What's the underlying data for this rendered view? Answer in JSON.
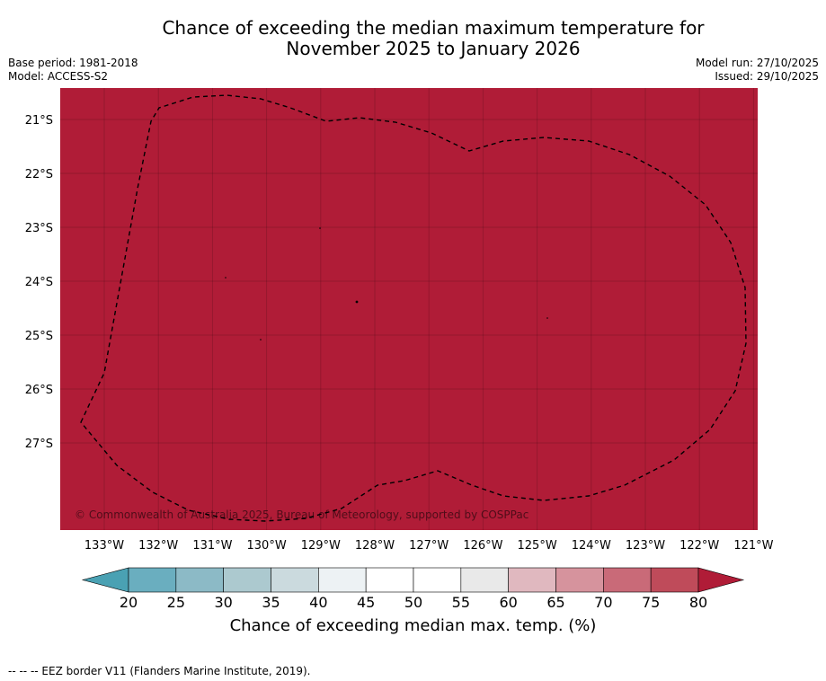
{
  "title": {
    "line1": "Chance of exceeding the median maximum temperature for",
    "line2": "November 2025 to January 2026"
  },
  "meta_left": {
    "base_period": "Base period: 1981-2018",
    "model": "Model: ACCESS-S2"
  },
  "meta_right": {
    "model_run": "Model run: 27/10/2025",
    "issued": "Issued: 29/10/2025"
  },
  "map": {
    "fill_color": "#b01c37",
    "lat_labels": [
      "21°S",
      "22°S",
      "23°S",
      "24°S",
      "25°S",
      "26°S",
      "27°S"
    ],
    "lon_labels": [
      "133°W",
      "132°W",
      "131°W",
      "130°W",
      "129°W",
      "128°W",
      "127°W",
      "126°W",
      "125°W",
      "124°W",
      "123°W",
      "122°W",
      "121°W"
    ],
    "copyright": "© Commonwealth of Australia 2025, Bureau of Meteorology, supported by COSPPac"
  },
  "colorbar": {
    "ticks": [
      "20",
      "25",
      "30",
      "35",
      "40",
      "45",
      "50",
      "55",
      "60",
      "65",
      "70",
      "75",
      "80"
    ],
    "colors": [
      "#6aaebf",
      "#8cbac6",
      "#acc9cf",
      "#cbdade",
      "#edf2f4",
      "#ffffff",
      "#ffffff",
      "#e9e9e9",
      "#e0b8bf",
      "#d6939d",
      "#c96a78",
      "#bf4b5a"
    ],
    "under_color": "#4aa1b3",
    "over_color": "#b01c37",
    "label": "Chance of exceeding median max. temp. (%)"
  },
  "footer": {
    "legend": "--  --  -- EEZ border V11 (Flanders Marine Institute, 2019)."
  }
}
